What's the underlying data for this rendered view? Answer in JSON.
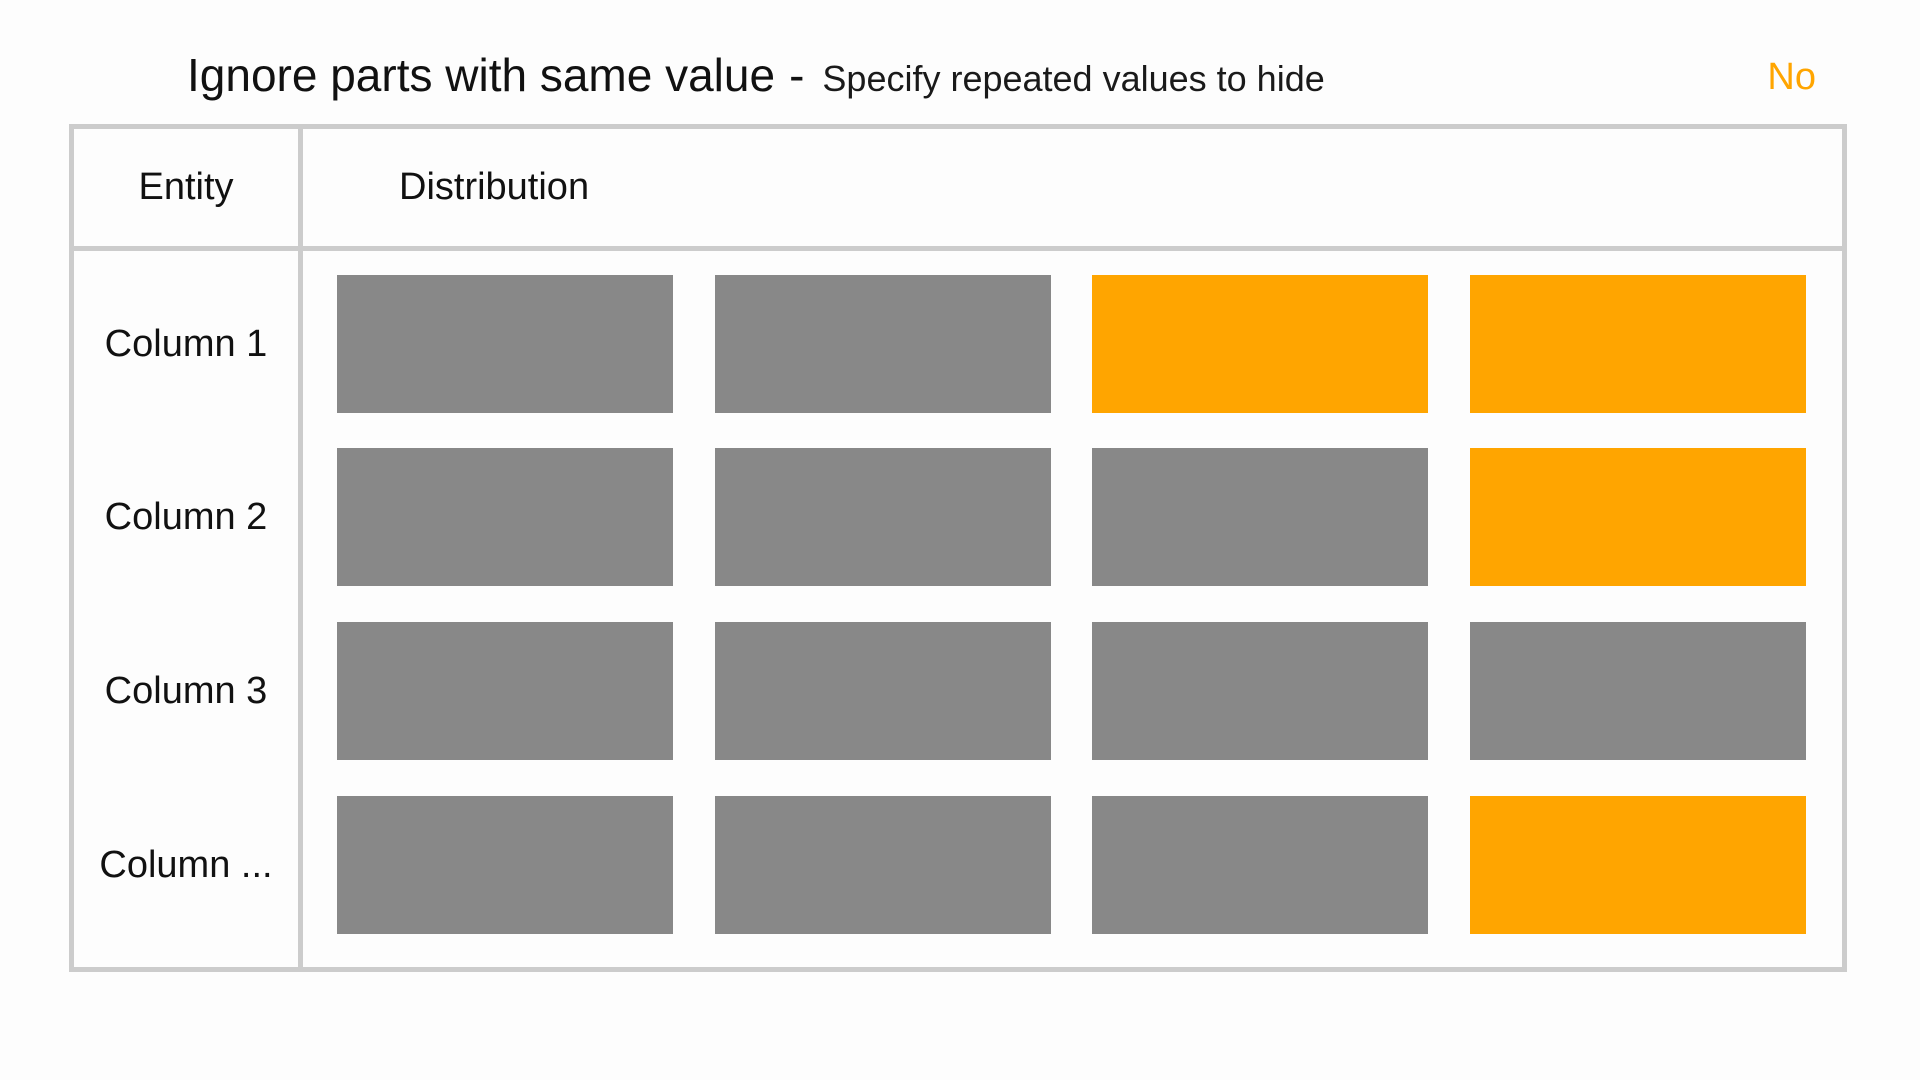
{
  "header": {
    "title": "Ignore parts with same value",
    "separator": "-",
    "subtitle": "Specify repeated values to hide",
    "toggle_value": "No"
  },
  "table": {
    "columns": {
      "entity": "Entity",
      "distribution": "Distribution"
    },
    "rows": [
      {
        "label": "Column 1",
        "cells": [
          "repeated",
          "repeated",
          "highlight",
          "highlight"
        ]
      },
      {
        "label": "Column 2",
        "cells": [
          "repeated",
          "repeated",
          "repeated",
          "highlight"
        ]
      },
      {
        "label": "Column 3",
        "cells": [
          "repeated",
          "repeated",
          "repeated",
          "repeated"
        ]
      },
      {
        "label": "Column ...",
        "cells": [
          "repeated",
          "repeated",
          "repeated",
          "highlight"
        ]
      }
    ]
  },
  "colors": {
    "repeated": "#888888",
    "highlight": "#ffa500",
    "grid": "#cccccc",
    "accent": "#ffa500"
  }
}
